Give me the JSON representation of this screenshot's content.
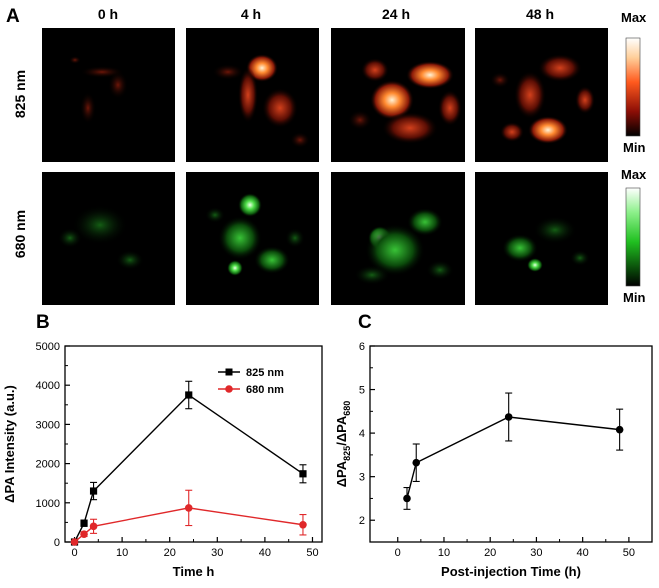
{
  "panels": {
    "A": "A",
    "B": "B",
    "C": "C"
  },
  "imaging": {
    "timepoints": [
      "0 h",
      "4 h",
      "24 h",
      "48 h"
    ],
    "rows": [
      "825 nm",
      "680 nm"
    ],
    "colorbar": {
      "max": "Max",
      "min": "Min"
    },
    "colors": {
      "row_825": "#ff7a2a",
      "row_680": "#32d232"
    }
  },
  "chart_data": [
    {
      "type": "line",
      "panel": "B",
      "title": "",
      "xlabel": "Time h",
      "ylabel": "ΔPA Intensity (a.u.)",
      "xlim": [
        -2,
        52
      ],
      "ylim": [
        0,
        5000
      ],
      "xticks": [
        0,
        10,
        20,
        30,
        40,
        50
      ],
      "yticks": [
        0,
        1000,
        2000,
        3000,
        4000,
        5000
      ],
      "legend_position": "top-right",
      "series": [
        {
          "name": "825 nm",
          "color": "#000000",
          "marker": "square",
          "x": [
            0,
            2,
            4,
            24,
            48
          ],
          "y": [
            0,
            480,
            1300,
            3750,
            1740
          ],
          "err": [
            20,
            80,
            220,
            350,
            230
          ]
        },
        {
          "name": "680 nm",
          "color": "#e0282a",
          "marker": "circle",
          "x": [
            0,
            2,
            4,
            24,
            48
          ],
          "y": [
            0,
            200,
            400,
            870,
            440
          ],
          "err": [
            20,
            60,
            180,
            450,
            260
          ]
        }
      ]
    },
    {
      "type": "line",
      "panel": "C",
      "title": "",
      "xlabel": "Post-injection Time (h)",
      "ylabel": "ΔPA825/ΔPA680",
      "ylabel_parts": {
        "a": "ΔPA",
        "a_sub": "825",
        "sep": "/ΔPA",
        "b_sub": "680"
      },
      "xlim": [
        -6,
        55
      ],
      "ylim": [
        1.5,
        6
      ],
      "xticks": [
        0,
        10,
        20,
        30,
        40,
        50
      ],
      "yticks": [
        2,
        3,
        4,
        5,
        6
      ],
      "series": [
        {
          "color": "#000000",
          "marker": "circle",
          "x": [
            2,
            4,
            24,
            48
          ],
          "y": [
            2.5,
            3.32,
            4.37,
            4.08
          ],
          "err": [
            0.25,
            0.43,
            0.55,
            0.47
          ]
        }
      ]
    }
  ]
}
